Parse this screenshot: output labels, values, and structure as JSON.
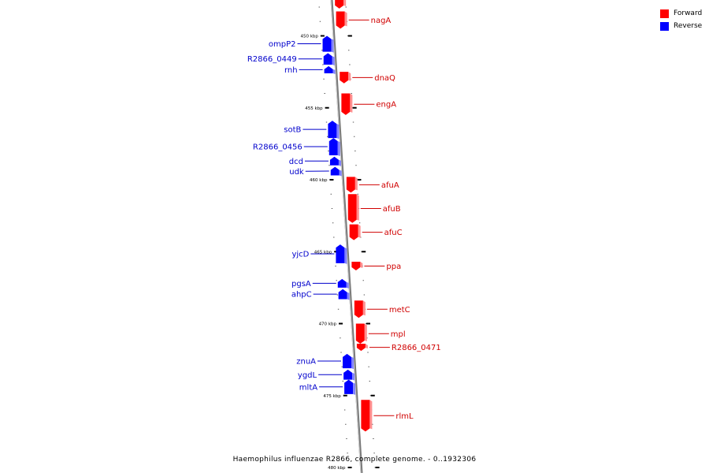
{
  "legend": {
    "forward": {
      "label": "Forward",
      "color": "#ff0000"
    },
    "reverse": {
      "label": "Reverse",
      "color": "#0000ff"
    }
  },
  "caption": "Haemophilus influenzae R2866, complete genome. - 0..1932306",
  "axis_ticks": [
    "450 kbp",
    "455 kbp",
    "460 kbp",
    "465 kbp",
    "470 kbp",
    "475 kbp",
    "480 kbp"
  ],
  "genes": [
    {
      "name": "",
      "strand": "forward",
      "start": 447.2,
      "end": 448.1
    },
    {
      "name": "nagA",
      "strand": "forward",
      "start": 448.3,
      "end": 449.5
    },
    {
      "name": "ompP2",
      "strand": "reverse",
      "start": 450.0,
      "end": 451.1
    },
    {
      "name": "R2866_0449",
      "strand": "reverse",
      "start": 451.2,
      "end": 452.0
    },
    {
      "name": "rnh",
      "strand": "reverse",
      "start": 452.1,
      "end": 452.6
    },
    {
      "name": "dnaQ",
      "strand": "forward",
      "start": 452.5,
      "end": 453.3
    },
    {
      "name": "engA",
      "strand": "forward",
      "start": 454.0,
      "end": 455.5
    },
    {
      "name": "sotB",
      "strand": "reverse",
      "start": 455.9,
      "end": 457.1
    },
    {
      "name": "R2866_0456",
      "strand": "reverse",
      "start": 457.1,
      "end": 458.3
    },
    {
      "name": "dcd",
      "strand": "reverse",
      "start": 458.4,
      "end": 459.0
    },
    {
      "name": "udk",
      "strand": "reverse",
      "start": 459.1,
      "end": 459.7
    },
    {
      "name": "afuA",
      "strand": "forward",
      "start": 459.8,
      "end": 460.9
    },
    {
      "name": "afuB",
      "strand": "forward",
      "start": 461.0,
      "end": 463.0
    },
    {
      "name": "afuC",
      "strand": "forward",
      "start": 463.1,
      "end": 464.2
    },
    {
      "name": "yjcD",
      "strand": "reverse",
      "start": 464.5,
      "end": 465.8
    },
    {
      "name": "ppa",
      "strand": "forward",
      "start": 465.7,
      "end": 466.3
    },
    {
      "name": "pgsA",
      "strand": "reverse",
      "start": 466.9,
      "end": 467.5
    },
    {
      "name": "ahpC",
      "strand": "reverse",
      "start": 467.6,
      "end": 468.3
    },
    {
      "name": "metC",
      "strand": "forward",
      "start": 468.4,
      "end": 469.6
    },
    {
      "name": "mpl",
      "strand": "forward",
      "start": 470.0,
      "end": 471.4
    },
    {
      "name": "R2866_0471",
      "strand": "forward",
      "start": 471.4,
      "end": 471.9
    },
    {
      "name": "znuA",
      "strand": "reverse",
      "start": 472.1,
      "end": 473.1
    },
    {
      "name": "ygdL",
      "strand": "reverse",
      "start": 473.2,
      "end": 473.9
    },
    {
      "name": "mltA",
      "strand": "reverse",
      "start": 473.9,
      "end": 474.9
    },
    {
      "name": "rlmL",
      "strand": "forward",
      "start": 475.3,
      "end": 477.5
    }
  ]
}
